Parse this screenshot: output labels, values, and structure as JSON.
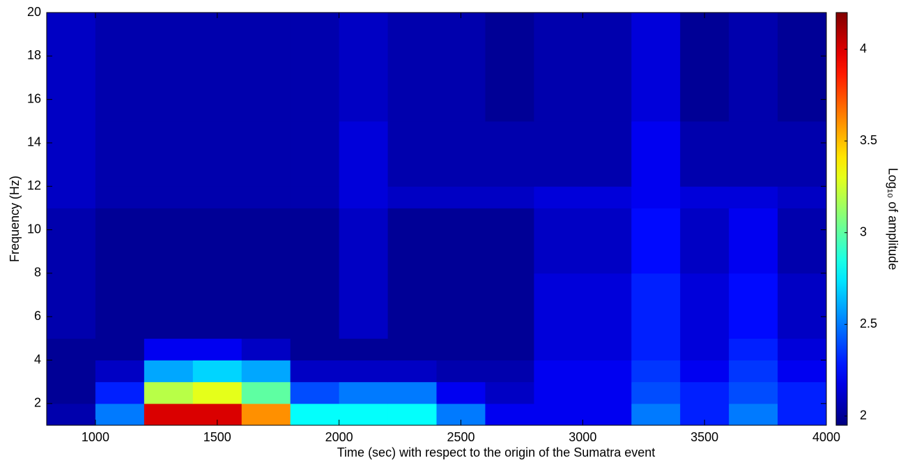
{
  "chart_data": {
    "type": "heatmap",
    "xlabel": "Time (sec) with respect to the origin of the Sumatra event",
    "ylabel": "Frequency (Hz)",
    "colorbar_label": "Log₁₀ of amplitude",
    "colormap": "jet",
    "x_bins": [
      800,
      1000,
      1200,
      1400,
      1600,
      1800,
      2000,
      2200,
      2400,
      2600,
      2800,
      3000,
      3200,
      3400,
      3600,
      3800,
      4000
    ],
    "y_bins": [
      1,
      2,
      3,
      4,
      5,
      8,
      11,
      12,
      15,
      20
    ],
    "values": [
      [
        2.05,
        2.5,
        4.0,
        4.0,
        3.6,
        2.8,
        2.8,
        2.8,
        2.5,
        2.2,
        2.2,
        2.2,
        2.5,
        2.3,
        2.5,
        2.3
      ],
      [
        2.0,
        2.3,
        3.2,
        3.3,
        3.0,
        2.4,
        2.5,
        2.5,
        2.2,
        2.1,
        2.2,
        2.2,
        2.4,
        2.3,
        2.4,
        2.3
      ],
      [
        2.0,
        2.1,
        2.6,
        2.7,
        2.6,
        2.1,
        2.1,
        2.1,
        2.05,
        2.05,
        2.2,
        2.2,
        2.35,
        2.2,
        2.35,
        2.2
      ],
      [
        2.0,
        2.0,
        2.2,
        2.2,
        2.1,
        2.0,
        2.0,
        2.0,
        2.0,
        2.0,
        2.15,
        2.15,
        2.3,
        2.15,
        2.3,
        2.15
      ],
      [
        2.05,
        2.0,
        2.0,
        2.0,
        2.0,
        2.0,
        2.1,
        2.0,
        2.0,
        2.0,
        2.15,
        2.15,
        2.3,
        2.15,
        2.25,
        2.1
      ],
      [
        2.05,
        2.0,
        2.0,
        2.0,
        2.0,
        2.0,
        2.1,
        2.0,
        2.0,
        2.0,
        2.1,
        2.1,
        2.25,
        2.1,
        2.2,
        2.05
      ],
      [
        2.1,
        2.05,
        2.05,
        2.05,
        2.05,
        2.05,
        2.15,
        2.1,
        2.1,
        2.1,
        2.15,
        2.15,
        2.2,
        2.15,
        2.15,
        2.1
      ],
      [
        2.1,
        2.05,
        2.05,
        2.05,
        2.05,
        2.05,
        2.15,
        2.05,
        2.05,
        2.05,
        2.05,
        2.05,
        2.2,
        2.05,
        2.05,
        2.05
      ],
      [
        2.1,
        2.05,
        2.05,
        2.05,
        2.05,
        2.05,
        2.1,
        2.05,
        2.05,
        2.0,
        2.05,
        2.05,
        2.15,
        2.0,
        2.05,
        2.0
      ]
    ],
    "xlim": [
      800,
      4000
    ],
    "xticks": [
      1000,
      1500,
      2000,
      2500,
      3000,
      3500,
      4000
    ],
    "ylim": [
      1,
      20
    ],
    "yticks": [
      2,
      4,
      6,
      8,
      10,
      12,
      14,
      16,
      18,
      20
    ],
    "clim": [
      1.95,
      4.2
    ],
    "cticks": [
      2,
      2.5,
      3,
      3.5,
      4
    ]
  }
}
